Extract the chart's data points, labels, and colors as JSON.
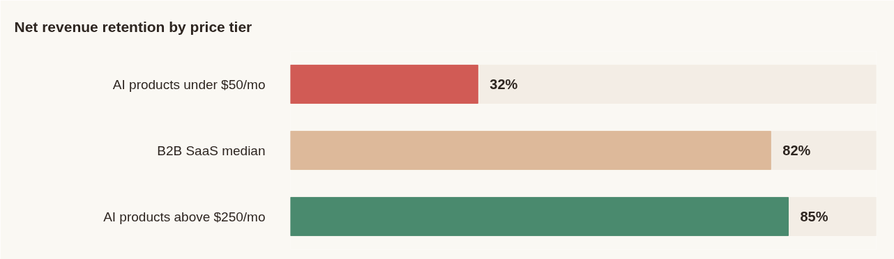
{
  "chart_data": {
    "type": "bar",
    "orientation": "horizontal",
    "title": "Net revenue retention by price tier",
    "categories": [
      "AI products under $50/mo",
      "B2B SaaS median",
      "AI products above $250/mo"
    ],
    "values": [
      32,
      82,
      85
    ],
    "colors": [
      "#d15b55",
      "#ddb99a",
      "#4a8a6e"
    ],
    "value_labels": [
      "32%",
      "82%",
      "85%"
    ],
    "xlim": [
      0,
      100
    ],
    "tick_labels": "y"
  }
}
